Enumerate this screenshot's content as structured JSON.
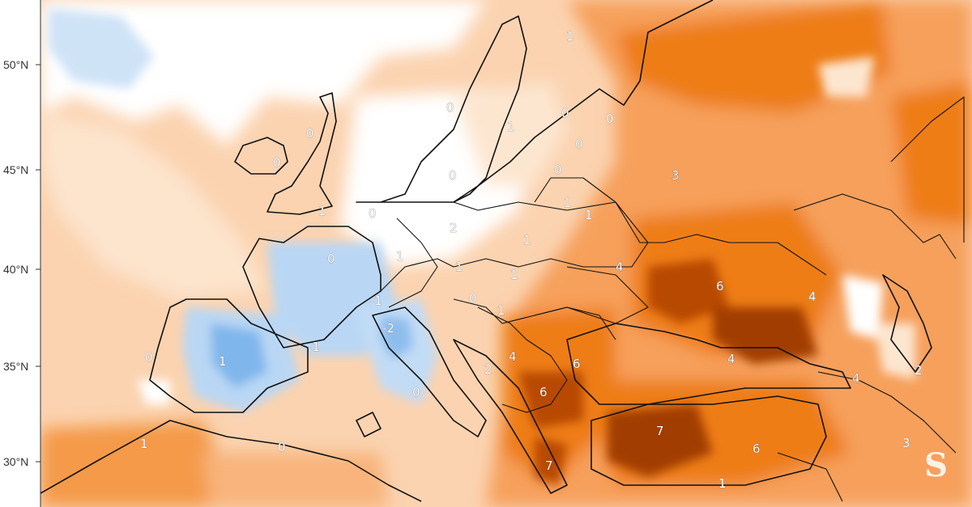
{
  "map": {
    "latitude_labels": [
      "50°N",
      "45°N",
      "40°N",
      "35°N",
      "30°N"
    ],
    "anomaly_labels": [
      {
        "text": "1"
      },
      {
        "text": "0"
      },
      {
        "text": "0"
      },
      {
        "text": "0"
      },
      {
        "text": "0"
      },
      {
        "text": "0"
      },
      {
        "text": "0"
      },
      {
        "text": "1"
      },
      {
        "text": "0"
      },
      {
        "text": "0"
      },
      {
        "text": "0"
      },
      {
        "text": "1"
      },
      {
        "text": "3"
      },
      {
        "text": "2"
      },
      {
        "text": "1"
      },
      {
        "text": "1"
      },
      {
        "text": "1"
      },
      {
        "text": "0"
      },
      {
        "text": "1"
      },
      {
        "text": "1"
      },
      {
        "text": "1"
      },
      {
        "text": "4"
      },
      {
        "text": "6"
      },
      {
        "text": "-1"
      },
      {
        "text": "0"
      },
      {
        "text": "4"
      },
      {
        "text": "-2"
      },
      {
        "text": "1"
      },
      {
        "text": "-1"
      },
      {
        "text": "0"
      },
      {
        "text": "1"
      },
      {
        "text": "4"
      },
      {
        "text": "6"
      },
      {
        "text": "4"
      },
      {
        "text": "2"
      },
      {
        "text": "4"
      },
      {
        "text": "2"
      },
      {
        "text": "6"
      },
      {
        "text": "0"
      },
      {
        "text": "1"
      },
      {
        "text": "0"
      },
      {
        "text": "7"
      },
      {
        "text": "6"
      },
      {
        "text": "3"
      },
      {
        "text": "7"
      },
      {
        "text": "1"
      }
    ],
    "colors": {
      "background": "#ffffff",
      "cold_light": "#cfe3f7",
      "cold_mid": "#9ec8ef",
      "cold_strong": "#5fa4e6",
      "warm_1": "#fde6d0",
      "warm_2": "#fbc79c",
      "warm_3": "#f6a05b",
      "warm_4": "#ee7d14",
      "warm_5": "#d96400",
      "warm_6": "#b84a00",
      "warm_7": "#8f3100",
      "boundary": "#111111"
    }
  },
  "watermark": {
    "text": "S"
  }
}
